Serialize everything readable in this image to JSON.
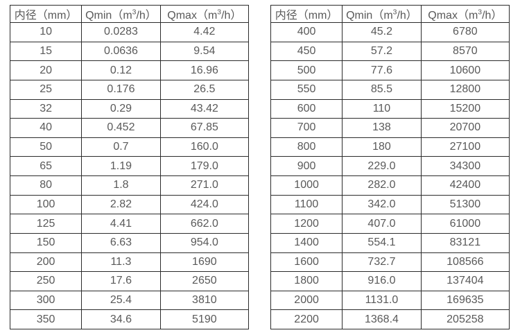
{
  "colors": {
    "background": "#ffffff",
    "border": "#2b2b2b",
    "text": "#595959"
  },
  "tables": [
    {
      "name": "flow-table-small-diameters",
      "headers": [
        "内径（mm）",
        "Qmin（m³/h）",
        "Qmax（m³/h）"
      ],
      "rows": [
        [
          "10",
          "0.0283",
          "4.42"
        ],
        [
          "15",
          "0.0636",
          "9.54"
        ],
        [
          "20",
          "0.12",
          "16.96"
        ],
        [
          "25",
          "0.176",
          "26.5"
        ],
        [
          "32",
          "0.29",
          "43.42"
        ],
        [
          "40",
          "0.452",
          "67.85"
        ],
        [
          "50",
          "0.7",
          "160.0"
        ],
        [
          "65",
          "1.19",
          "179.0"
        ],
        [
          "80",
          "1.8",
          "271.0"
        ],
        [
          "100",
          "2.82",
          "424.0"
        ],
        [
          "125",
          "4.41",
          "662.0"
        ],
        [
          "150",
          "6.63",
          "954.0"
        ],
        [
          "200",
          "11.3",
          "1690"
        ],
        [
          "250",
          "17.6",
          "2650"
        ],
        [
          "300",
          "25.4",
          "3810"
        ],
        [
          "350",
          "34.6",
          "5190"
        ]
      ]
    },
    {
      "name": "flow-table-large-diameters",
      "headers": [
        "内径（mm）",
        "Qmin（m³/h）",
        "Qmax（m³/h）"
      ],
      "rows": [
        [
          "400",
          "45.2",
          "6780"
        ],
        [
          "450",
          "57.2",
          "8570"
        ],
        [
          "500",
          "77.6",
          "10600"
        ],
        [
          "550",
          "85.5",
          "12800"
        ],
        [
          "600",
          "110",
          "15200"
        ],
        [
          "700",
          "138",
          "20700"
        ],
        [
          "800",
          "180",
          "27100"
        ],
        [
          "900",
          "229.0",
          "34300"
        ],
        [
          "1000",
          "282.0",
          "42400"
        ],
        [
          "1100",
          "342.0",
          "51300"
        ],
        [
          "1200",
          "407.0",
          "61000"
        ],
        [
          "1400",
          "554.1",
          "83121"
        ],
        [
          "1600",
          "732.7",
          "108566"
        ],
        [
          "1800",
          "916.0",
          "137404"
        ],
        [
          "2000",
          "1131.0",
          "169635"
        ],
        [
          "2200",
          "1368.4",
          "205258"
        ]
      ]
    }
  ],
  "chart_data": {
    "type": "table",
    "title": "",
    "columns": [
      "内径（mm）",
      "Qmin（m³/h）",
      "Qmax（m³/h）"
    ],
    "series": [
      {
        "name": "left-table",
        "diameter_mm": [
          10,
          15,
          20,
          25,
          32,
          40,
          50,
          65,
          80,
          100,
          125,
          150,
          200,
          250,
          300,
          350
        ],
        "qmin": [
          0.0283,
          0.0636,
          0.12,
          0.176,
          0.29,
          0.452,
          0.7,
          1.19,
          1.8,
          2.82,
          4.41,
          6.63,
          11.3,
          17.6,
          25.4,
          34.6
        ],
        "qmax": [
          4.42,
          9.54,
          16.96,
          26.5,
          43.42,
          67.85,
          160.0,
          179.0,
          271.0,
          424.0,
          662.0,
          954.0,
          1690,
          2650,
          3810,
          5190
        ]
      },
      {
        "name": "right-table",
        "diameter_mm": [
          400,
          450,
          500,
          550,
          600,
          700,
          800,
          900,
          1000,
          1100,
          1200,
          1400,
          1600,
          1800,
          2000,
          2200
        ],
        "qmin": [
          45.2,
          57.2,
          77.6,
          85.5,
          110,
          138,
          180,
          229.0,
          282.0,
          342.0,
          407.0,
          554.1,
          732.7,
          916.0,
          1131.0,
          1368.4
        ],
        "qmax": [
          6780,
          8570,
          10600,
          12800,
          15200,
          20700,
          27100,
          34300,
          42400,
          51300,
          61000,
          83121,
          108566,
          137404,
          169635,
          205258
        ]
      }
    ]
  }
}
